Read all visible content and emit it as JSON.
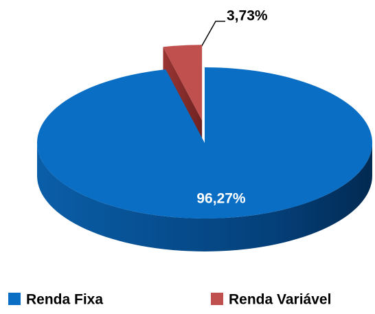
{
  "chart_data": {
    "type": "pie",
    "categories": [
      "Renda Fixa",
      "Renda Variável"
    ],
    "values": [
      96.27,
      3.73
    ],
    "value_labels": [
      "96,27%",
      "3,73%"
    ],
    "colors": [
      "#0a6fc4",
      "#c0504d"
    ],
    "explode": [
      0,
      0.3
    ],
    "legend": "bottom"
  }
}
